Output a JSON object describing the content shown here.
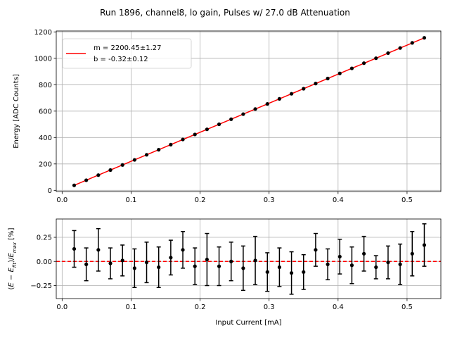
{
  "title": "Run 1896, channel8, lo gain, Pulses w/ 27.0 dB Attenuation",
  "chart_data": [
    {
      "type": "scatter",
      "panel": "top",
      "ylabel": "Energy [ADC Counts]",
      "xlabel": "",
      "xlim": [
        -0.0085,
        0.549
      ],
      "ylim": [
        -9,
        1207
      ],
      "xticks": [
        "0.0",
        "0.1",
        "0.2",
        "0.3",
        "0.4",
        "0.5"
      ],
      "yticks": [
        "0",
        "200",
        "400",
        "600",
        "800",
        "1000",
        "1200"
      ],
      "grid": true,
      "legend_position": "top-left",
      "legend": [
        "m = 2200.45±1.27",
        "b = -0.32±0.12"
      ],
      "fit": {
        "slope": 2200.45,
        "intercept": -0.32,
        "color": "#ff0000"
      },
      "point_color": "#000000",
      "x": [
        0.0175,
        0.035,
        0.0525,
        0.07,
        0.0875,
        0.105,
        0.1225,
        0.14,
        0.1575,
        0.175,
        0.1925,
        0.21,
        0.2275,
        0.245,
        0.2625,
        0.28,
        0.2975,
        0.315,
        0.3325,
        0.35,
        0.3675,
        0.385,
        0.4025,
        0.42,
        0.4375,
        0.455,
        0.4725,
        0.49,
        0.5075,
        0.525
      ],
      "y": [
        38,
        76.7,
        115.2,
        153.7,
        192.4,
        230.7,
        269.3,
        307.6,
        346.4,
        385.2,
        423.2,
        461.9,
        500.2,
        538.8,
        577.3,
        616,
        654.2,
        692.9,
        731.2,
        769.8,
        808.9,
        846.9,
        885.6,
        924,
        963.2,
        1000.8,
        1039.4,
        1078,
        1116.9,
        1155.4
      ]
    },
    {
      "type": "scatter",
      "panel": "bottom",
      "ylabel": "$(E-E_{fit})/E_{max}$ [%]",
      "xlabel": "Input Current [mA]",
      "xlim": [
        -0.0085,
        0.549
      ],
      "ylim": [
        -0.385,
        0.44
      ],
      "xticks": [
        "0.0",
        "0.1",
        "0.2",
        "0.3",
        "0.4",
        "0.5"
      ],
      "yticks": [
        "−0.25",
        "0.00",
        "0.25"
      ],
      "grid": true,
      "reference_line": {
        "y": 0,
        "style": "dashed",
        "color": "#ff0000"
      },
      "x": [
        0.0175,
        0.035,
        0.0525,
        0.07,
        0.0875,
        0.105,
        0.1225,
        0.14,
        0.1575,
        0.175,
        0.1925,
        0.21,
        0.2275,
        0.245,
        0.2625,
        0.28,
        0.2975,
        0.315,
        0.3325,
        0.35,
        0.3675,
        0.385,
        0.4025,
        0.42,
        0.4375,
        0.455,
        0.4725,
        0.49,
        0.5075,
        0.525
      ],
      "y": [
        0.13,
        -0.03,
        0.12,
        -0.02,
        0.01,
        -0.07,
        -0.01,
        -0.06,
        0.04,
        0.12,
        -0.05,
        0.02,
        -0.05,
        0.0,
        -0.07,
        0.01,
        -0.11,
        -0.06,
        -0.12,
        -0.11,
        0.12,
        -0.03,
        0.05,
        -0.04,
        0.08,
        -0.06,
        -0.01,
        -0.03,
        0.08,
        0.17
      ],
      "yerr": [
        0.19,
        0.17,
        0.22,
        0.16,
        0.16,
        0.2,
        0.21,
        0.21,
        0.18,
        0.19,
        0.19,
        0.27,
        0.2,
        0.2,
        0.23,
        0.25,
        0.2,
        0.2,
        0.22,
        0.18,
        0.17,
        0.16,
        0.18,
        0.19,
        0.18,
        0.12,
        0.17,
        0.21,
        0.23,
        0.22
      ]
    }
  ]
}
